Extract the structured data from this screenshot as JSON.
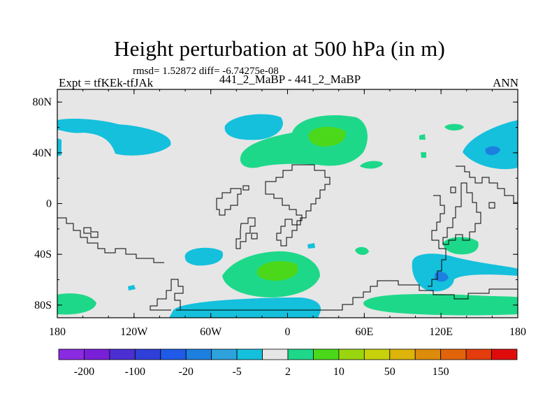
{
  "chart_data": {
    "type": "heatmap",
    "title": "Height perturbation at 500 hPa (in m)",
    "stats_line": "rmsd= 1.52872  diff= -6.74275e-08",
    "left_label": "Expt = tfKEk-tfJAk",
    "center_label": "441_2_MaBP - 441_2_MaBP",
    "right_label": "ANN",
    "x_ticks": [
      "180",
      "120W",
      "60W",
      "0",
      "60E",
      "120E",
      "180"
    ],
    "y_ticks": [
      "80N",
      "40N",
      "0",
      "40S",
      "80S"
    ],
    "x_range": [
      -180,
      180
    ],
    "y_range": [
      -90,
      90
    ],
    "colorbar": {
      "colors": [
        "#8a2be2",
        "#7a1fd8",
        "#4b2fd2",
        "#2f3fd8",
        "#1f5be8",
        "#1d7fe0",
        "#2da2dc",
        "#14c0dc",
        "#e6e6e6",
        "#1ed88a",
        "#4cd81a",
        "#9ad60f",
        "#c8d20c",
        "#dcb40a",
        "#dc8c0a",
        "#e2640a",
        "#e43c0c",
        "#e00c0c"
      ],
      "labels": [
        "-200",
        "-100",
        "-20",
        "-5",
        "2",
        "10",
        "50",
        "150"
      ]
    },
    "regions": [
      {
        "value_class": "-5",
        "lon": -175,
        "lat": 55
      },
      {
        "value_class": "-5",
        "lon": -65,
        "lat": 50
      },
      {
        "value_class": "-5",
        "lon": 145,
        "lat": 45
      },
      {
        "value_class": "-5",
        "lon": -115,
        "lat": -43
      },
      {
        "value_class": "-5",
        "lon": -55,
        "lat": -80
      },
      {
        "value_class": "-5",
        "lon": 115,
        "lat": -55
      },
      {
        "value_class": "-20",
        "lon": 155,
        "lat": 40
      },
      {
        "value_class": "-20",
        "lon": 120,
        "lat": -57
      },
      {
        "value_class": "2",
        "lon": 30,
        "lat": 55
      },
      {
        "value_class": "2",
        "lon": -15,
        "lat": -53
      },
      {
        "value_class": "2",
        "lon": 125,
        "lat": -30
      },
      {
        "value_class": "2",
        "lon": 150,
        "lat": -78
      },
      {
        "value_class": "2",
        "lon": -170,
        "lat": -78
      },
      {
        "value_class": "10",
        "lon": 35,
        "lat": 55
      },
      {
        "value_class": "10",
        "lon": -10,
        "lat": -50
      }
    ]
  }
}
